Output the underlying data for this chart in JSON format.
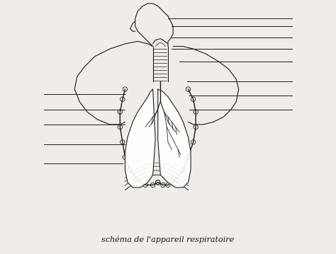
{
  "bg_color": "#f0ede8",
  "line_color": "#1a1a1a",
  "caption": "schéma de l'appareil respiratoire",
  "caption_fontsize": 8,
  "fig_width": 4.74,
  "fig_height": 3.59,
  "dpi": 100
}
